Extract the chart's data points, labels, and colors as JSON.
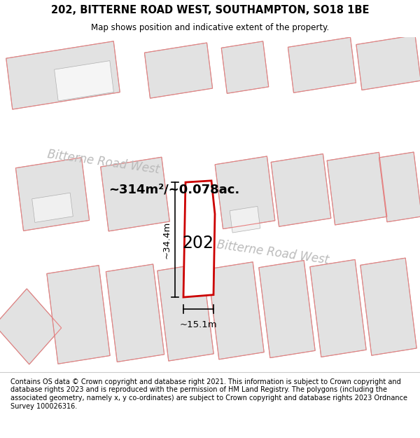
{
  "title": "202, BITTERNE ROAD WEST, SOUTHAMPTON, SO18 1BE",
  "subtitle": "Map shows position and indicative extent of the property.",
  "footer": "Contains OS data © Crown copyright and database right 2021. This information is subject to Crown copyright and database rights 2023 and is reproduced with the permission of HM Land Registry. The polygons (including the associated geometry, namely x, y co-ordinates) are subject to Crown copyright and database rights 2023 Ordnance Survey 100026316.",
  "bg_color": "#f0f0f0",
  "road_color": "#ffffff",
  "building_fill": "#e2e2e2",
  "building_edge": "#b0b0b0",
  "pink_line_color": "#e88080",
  "highlight_fill": "#ffffff",
  "highlight_edge": "#cc0000",
  "area_text": "~314m²/~0.078ac.",
  "dim_h": "~34.4m",
  "dim_w": "~15.1m",
  "property_label": "202",
  "road_label_1": "Bitterne Road West",
  "road_label_2": "Bitterne Road West"
}
